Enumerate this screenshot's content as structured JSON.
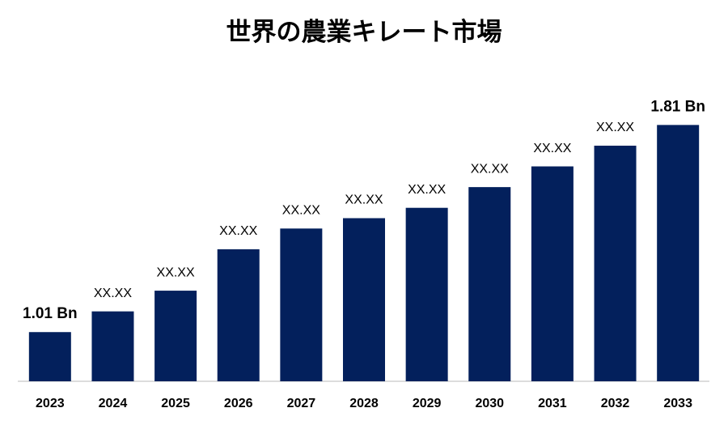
{
  "chart_data": {
    "type": "bar",
    "title": "世界の農業キレート市場",
    "categories": [
      "2023",
      "2024",
      "2025",
      "2026",
      "2027",
      "2028",
      "2029",
      "2030",
      "2031",
      "2032",
      "2033"
    ],
    "values": [
      1.01,
      1.09,
      1.17,
      1.33,
      1.41,
      1.45,
      1.49,
      1.57,
      1.65,
      1.73,
      1.81
    ],
    "value_labels": [
      "1.01 Bn",
      "XX.XX",
      "XX.XX",
      "XX.XX",
      "XX.XX",
      "XX.XX",
      "XX.XX",
      "XX.XX",
      "XX.XX",
      "XX.XX",
      "1.81 Bn"
    ],
    "color": "#03205c",
    "ylim": [
      0.82,
      1.98
    ]
  }
}
